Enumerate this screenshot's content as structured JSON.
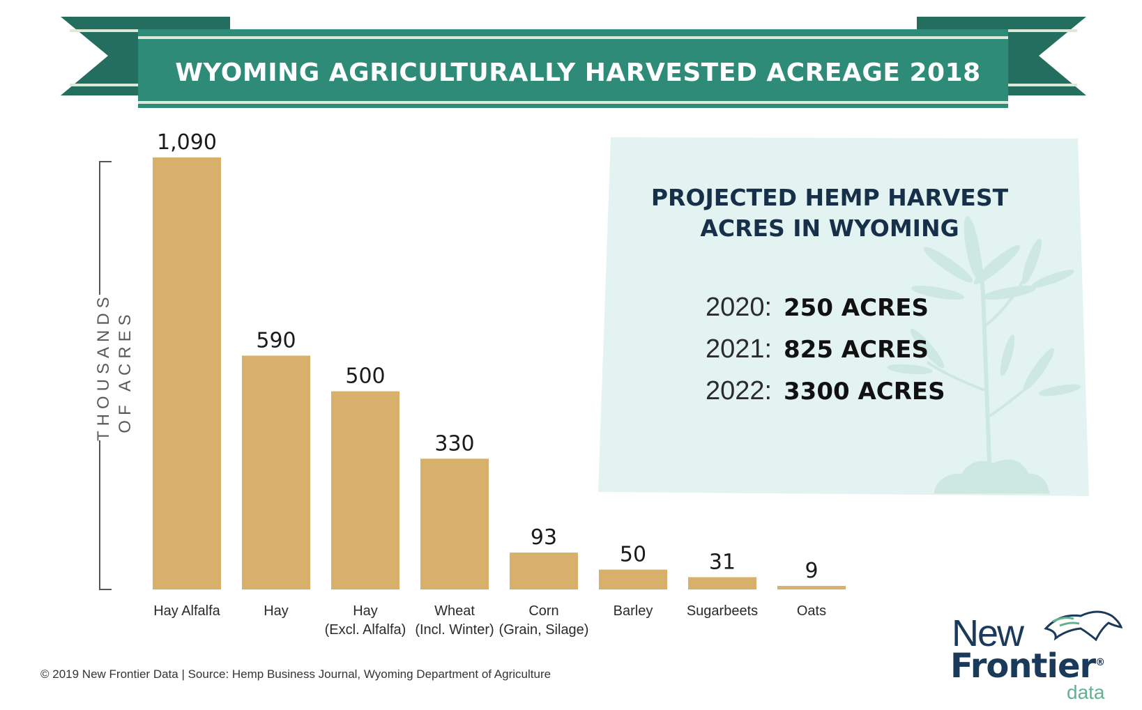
{
  "banner": {
    "title": "WYOMING AGRICULTURALLY HARVESTED ACREAGE 2018"
  },
  "colors": {
    "banner": "#2e8b78",
    "banner_dark": "#236e5f",
    "banner_stripe": "#dde9d8",
    "bar": "#d7b06b",
    "panel_bg": "#e3f3f1",
    "panel_title": "#17304a",
    "hemp_leaf": "#cde8e1"
  },
  "chart_data": {
    "type": "bar",
    "title": "WYOMING AGRICULTURALLY HARVESTED ACREAGE 2018",
    "ylabel": "THOUSANDS OF ACRES",
    "categories": [
      "Hay Alfalfa",
      "Hay",
      "Hay\n(Excl. Alfalfa)",
      "Wheat\n(Incl. Winter)",
      "Corn\n(Grain, Silage)",
      "Barley",
      "Sugarbeets",
      "Oats"
    ],
    "values": [
      1090,
      590,
      500,
      330,
      93,
      50,
      31,
      9
    ],
    "value_labels": [
      "1,090",
      "590",
      "500",
      "330",
      "93",
      "50",
      "31",
      "9"
    ],
    "ylim": [
      0,
      1090
    ],
    "grid": false,
    "legend": "none"
  },
  "y_axis_label": "THOUSANDS OF ACRES",
  "projection": {
    "title": "PROJECTED HEMP HARVEST ACRES IN WYOMING",
    "rows": [
      {
        "year": "2020:",
        "value": "250 ACRES"
      },
      {
        "year": "2021:",
        "value": "825 ACRES"
      },
      {
        "year": "2022:",
        "value": "3300 ACRES"
      }
    ]
  },
  "footer": "© 2019  New Frontier Data |   Source: Hemp Business Journal, Wyoming Department of Agriculture",
  "logo": {
    "line1": "New",
    "line2": "Frontier",
    "line3": "data",
    "mark": "®"
  },
  "icons": {
    "hemp": "hemp-plant-icon",
    "horse": "horse-logo-icon"
  }
}
